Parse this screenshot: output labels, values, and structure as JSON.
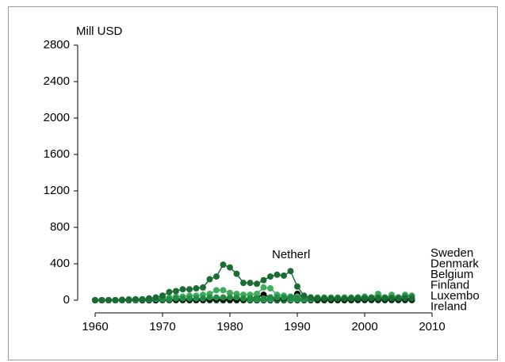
{
  "chart_data": {
    "type": "line",
    "y_label": "Mill USD",
    "x": [
      1960,
      1961,
      1962,
      1963,
      1964,
      1965,
      1966,
      1967,
      1968,
      1969,
      1970,
      1971,
      1972,
      1973,
      1974,
      1975,
      1976,
      1977,
      1978,
      1979,
      1980,
      1981,
      1982,
      1983,
      1984,
      1985,
      1986,
      1987,
      1988,
      1989,
      1990,
      1991,
      1992,
      1993,
      1994,
      1995,
      1996,
      1997,
      1998,
      1999,
      2000,
      2001,
      2002,
      2003,
      2004,
      2005,
      2006,
      2007
    ],
    "xlim": [
      1960,
      2010
    ],
    "xticks": [
      1960,
      1970,
      1980,
      1990,
      2000,
      2010
    ],
    "ylim": [
      0,
      2800
    ],
    "yticks": [
      0,
      400,
      800,
      1200,
      1600,
      2000,
      2400,
      2800
    ],
    "series": [
      {
        "name": "Netherl",
        "color": "#1b6b35",
        "values": [
          0,
          0,
          0,
          0,
          5,
          5,
          10,
          10,
          20,
          30,
          50,
          90,
          100,
          120,
          120,
          130,
          140,
          230,
          260,
          390,
          360,
          290,
          190,
          190,
          180,
          220,
          260,
          280,
          270,
          320,
          150,
          50,
          30,
          20,
          20,
          20,
          20,
          20,
          20,
          20,
          20,
          20,
          20,
          20,
          20,
          20,
          20,
          20
        ]
      },
      {
        "name": "Sweden",
        "color": "#238b45",
        "values": [
          0,
          0,
          0,
          0,
          0,
          0,
          0,
          5,
          5,
          10,
          10,
          10,
          20,
          20,
          20,
          20,
          20,
          30,
          30,
          30,
          30,
          30,
          20,
          20,
          20,
          20,
          30,
          30,
          30,
          30,
          20,
          20,
          20,
          20,
          20,
          20,
          20,
          20,
          20,
          30,
          30,
          30,
          30,
          30,
          30,
          30,
          40,
          40
        ]
      },
      {
        "name": "Denmark",
        "color": "#41ab5d",
        "values": [
          0,
          0,
          0,
          0,
          0,
          10,
          10,
          10,
          20,
          20,
          30,
          30,
          40,
          40,
          50,
          50,
          60,
          70,
          110,
          110,
          80,
          70,
          60,
          60,
          70,
          140,
          130,
          60,
          50,
          40,
          40,
          30,
          30,
          30,
          30,
          30,
          30,
          30,
          30,
          30,
          40,
          30,
          70,
          30,
          60,
          30,
          60,
          50
        ]
      },
      {
        "name": "Belgium",
        "color": "#000000",
        "values": [
          0,
          0,
          0,
          0,
          0,
          0,
          0,
          0,
          0,
          0,
          5,
          5,
          5,
          5,
          5,
          5,
          5,
          10,
          10,
          10,
          10,
          10,
          10,
          20,
          30,
          60,
          30,
          20,
          20,
          30,
          70,
          30,
          20,
          10,
          10,
          10,
          10,
          10,
          10,
          10,
          10,
          10,
          10,
          10,
          10,
          10,
          10,
          10
        ]
      },
      {
        "name": "Finland",
        "color": "#31a354",
        "values": [
          0,
          0,
          0,
          0,
          0,
          0,
          0,
          0,
          0,
          0,
          0,
          0,
          0,
          0,
          5,
          5,
          5,
          5,
          5,
          10,
          10,
          10,
          10,
          10,
          10,
          10,
          10,
          10,
          10,
          10,
          10,
          10,
          10,
          10,
          10,
          10,
          10,
          10,
          10,
          10,
          10,
          10,
          10,
          10,
          10,
          10,
          10,
          10
        ]
      },
      {
        "name": "Luxembo",
        "color": "#00441b",
        "values": [
          0,
          0,
          0,
          0,
          0,
          0,
          0,
          0,
          0,
          0,
          0,
          0,
          0,
          0,
          0,
          0,
          0,
          0,
          0,
          0,
          0,
          0,
          0,
          0,
          0,
          0,
          0,
          0,
          0,
          0,
          0,
          0,
          0,
          0,
          0,
          0,
          0,
          0,
          0,
          5,
          5,
          5,
          5,
          5,
          5,
          5,
          5,
          5
        ]
      },
      {
        "name": "Ireland",
        "color": "#1b6b35",
        "values": [
          0,
          0,
          0,
          0,
          0,
          0,
          0,
          0,
          0,
          0,
          0,
          0,
          0,
          0,
          0,
          0,
          0,
          0,
          0,
          0,
          0,
          0,
          0,
          0,
          0,
          0,
          0,
          0,
          0,
          0,
          0,
          0,
          0,
          0,
          0,
          0,
          0,
          0,
          0,
          0,
          0,
          0,
          0,
          0,
          0,
          0,
          0,
          0
        ]
      }
    ]
  }
}
